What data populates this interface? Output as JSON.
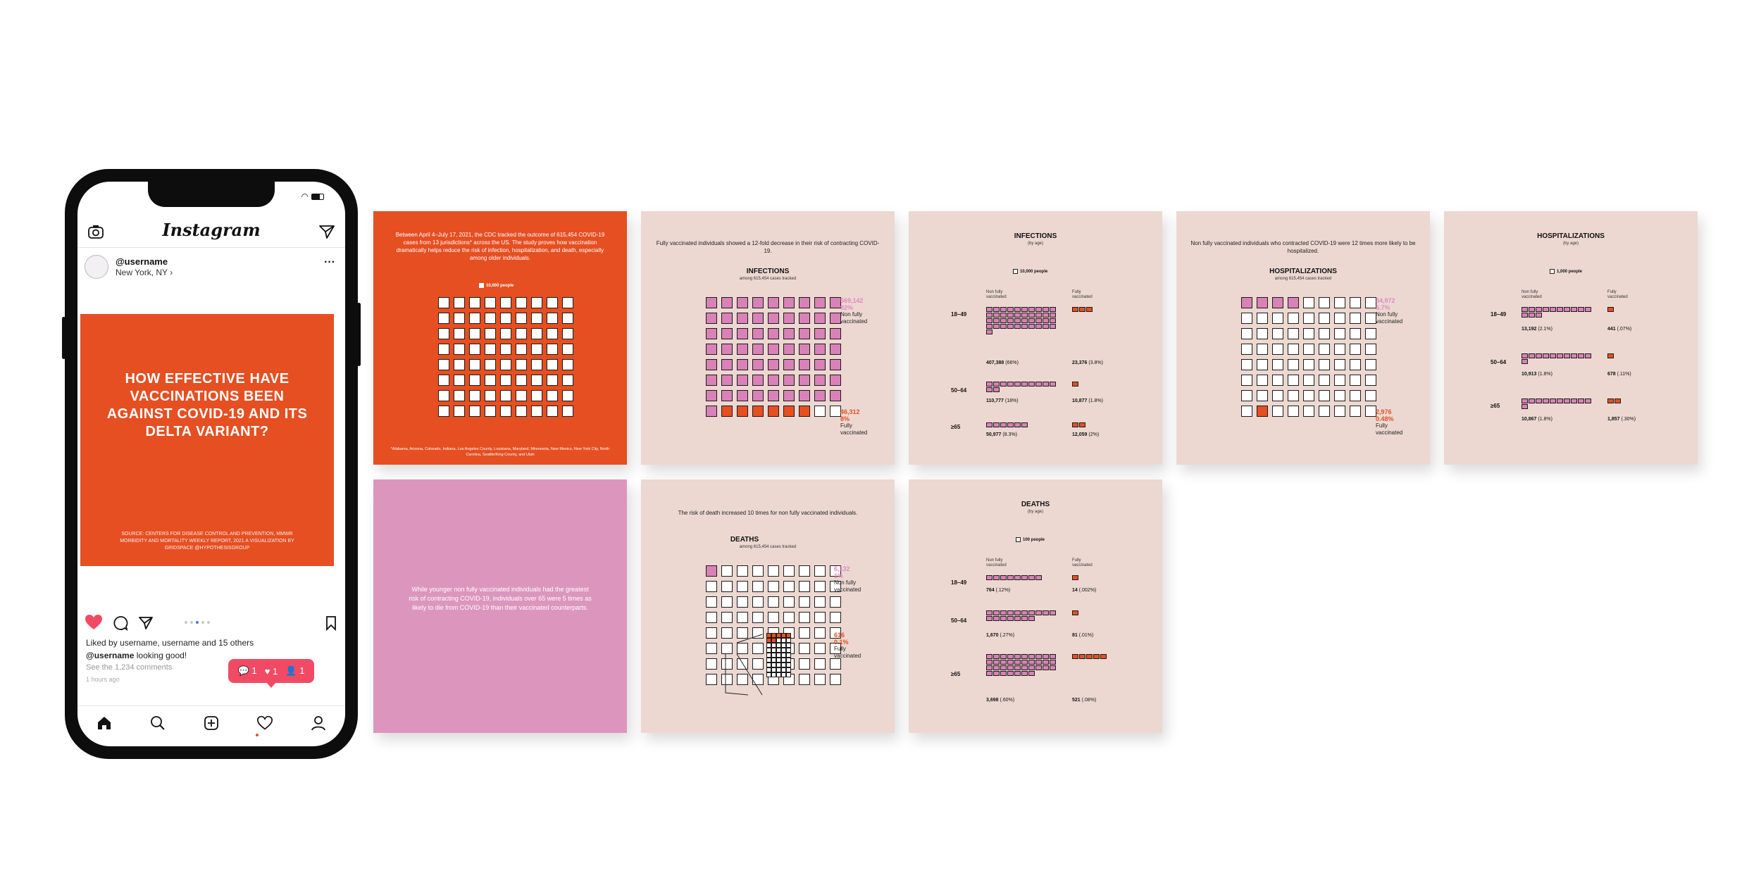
{
  "phone": {
    "app_title": "Instagram",
    "username": "@username",
    "location": "New York, NY ›",
    "post_title": "HOW EFFECTIVE HAVE VACCINATIONS BEEN AGAINST COVID-19 AND ITS DELTA VARIANT?",
    "post_source": "SOURCE: CENTERS FOR DISEASE CONTROL AND PREVENTION, MMWR MORBIDITY AND MORTALITY WEEKLY REPORT, 2021 A VISUALIZATION BY GRIDSPACE @HYPOTHESISGROUP",
    "likes_text": "Liked by username, username and 15 others",
    "caption_user": "@username",
    "caption_text": " looking good!",
    "comments_text": "See the 1,234 comments",
    "time_ago": "1 hours ago",
    "notif_comments": "1",
    "notif_likes": "1",
    "notif_follows": "1"
  },
  "slides": {
    "intro": {
      "text": "Between April 4–July 17, 2021, the CDC tracked the outcome of 615,454 COVID-19 cases from 13 jurisdictions* across the US. The study proves how vaccination dramatically helps reduce the risk of infection, hospitalization, and death, especially among older individuals.",
      "legend": "10,000 people",
      "footnote": "*Alabama, Arizona, Colorado, Indiana, Los Angeles County, Louisiana, Maryland, Minnesota, New Mexico, New York City, North Carolina, Seattle/King County, and Utah"
    },
    "infections": {
      "lead": "Fully vaccinated individuals showed a 12-fold decrease in their risk of contracting COVID-19.",
      "title": "INFECTIONS",
      "subtitle": "among 615,454 cases tracked",
      "nonvax_count": "569,142",
      "nonvax_pct": "92%",
      "nonvax_label": "Non fully vaccinated",
      "vax_count": "46,312",
      "vax_pct": "8%",
      "vax_label": "Fully vaccinated"
    },
    "infections_age": {
      "title": "INFECTIONS",
      "subtitle": "(by age)",
      "legend": "10,000 people",
      "col_nonvax": "Non fully vaccinated",
      "col_vax": "Fully vaccinated",
      "rows": [
        {
          "age": "18–49",
          "nonvax": "407,388",
          "nonvax_pct": "(66%)",
          "vax": "23,376",
          "vax_pct": "(3.8%)"
        },
        {
          "age": "50–64",
          "nonvax": "110,777",
          "nonvax_pct": "(18%)",
          "vax": "10,877",
          "vax_pct": "(1.8%)"
        },
        {
          "age": "≥65",
          "nonvax": "50,977",
          "nonvax_pct": "(8.3%)",
          "vax": "12,059",
          "vax_pct": "(2%)"
        }
      ]
    },
    "hospitalizations": {
      "lead": "Non fully vaccinated individuals who contracted COVID-19 were 12 times more likely to be hospitalized.",
      "title": "HOSPITALIZATIONS",
      "subtitle": "among 615,454 cases tracked",
      "nonvax_count": "34,972",
      "nonvax_pct": "5.7%",
      "nonvax_label": "Non fully vaccinated",
      "vax_count": "2,976",
      "vax_pct": "0.48%",
      "vax_label": "Fully vaccinated"
    },
    "hospitalizations_age": {
      "title": "HOSPITALIZATIONS",
      "subtitle": "(by age)",
      "legend": "1,000 people",
      "col_nonvax": "Non fully vaccinated",
      "col_vax": "Fully vaccinated",
      "rows": [
        {
          "age": "18–49",
          "nonvax": "13,192",
          "nonvax_pct": "(2.1%)",
          "vax": "441",
          "vax_pct": "(.07%)"
        },
        {
          "age": "50–64",
          "nonvax": "10,913",
          "nonvax_pct": "(1.8%)",
          "vax": "678",
          "vax_pct": "(.11%)"
        },
        {
          "age": "≥65",
          "nonvax": "10,867",
          "nonvax_pct": "(1.8%)",
          "vax": "1,857",
          "vax_pct": "(.30%)"
        }
      ]
    },
    "summary": {
      "text": "While younger non fully vaccinated individuals had the greatest risk of contracting COVID-19, individuals over 65 were 5 times as likely to die from COVID-19 than their vaccinated counterparts."
    },
    "deaths": {
      "lead": "The risk of death increased 10 times for non fully vaccinated individuals.",
      "title": "DEATHS",
      "subtitle": "among 615,454 cases tracked",
      "nonvax_count": "6,132",
      "nonvax_pct": "1%",
      "nonvax_label": "Non fully vaccinated",
      "vax_count": "616",
      "vax_pct": "0.1%",
      "vax_label": "Fully vaccinated"
    },
    "deaths_age": {
      "title": "DEATHS",
      "subtitle": "(by age)",
      "legend": "100 people",
      "col_nonvax": "Non fully vaccinated",
      "col_vax": "Fully vaccinated",
      "rows": [
        {
          "age": "18–49",
          "nonvax": "764",
          "nonvax_pct": "(.12%)",
          "vax": "14",
          "vax_pct": "(.002%)"
        },
        {
          "age": "50–64",
          "nonvax": "1,670",
          "nonvax_pct": "(.27%)",
          "vax": "81",
          "vax_pct": "(.01%)"
        },
        {
          "age": "≥65",
          "nonvax": "3,698",
          "nonvax_pct": "(.60%)",
          "vax": "521",
          "vax_pct": "(.08%)"
        }
      ]
    }
  },
  "colors": {
    "orange": "#e54f22",
    "pink_panel": "#dc96bd",
    "beige": "#ecd8d1",
    "square_pink": "#d982b7",
    "notif": "#f14a65"
  }
}
